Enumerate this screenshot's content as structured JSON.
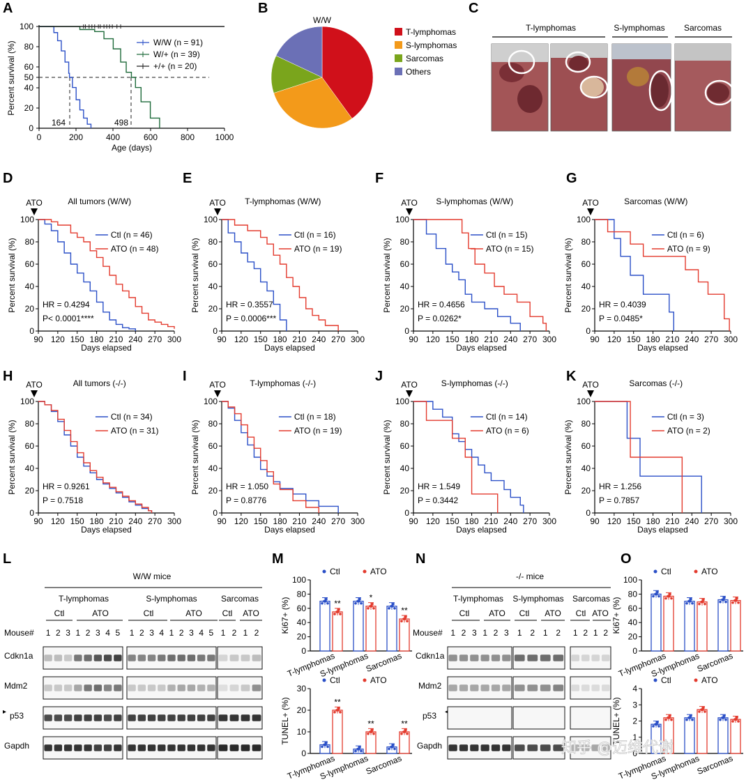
{
  "figure": {
    "panels": [
      "A",
      "B",
      "C",
      "D",
      "E",
      "F",
      "G",
      "H",
      "I",
      "J",
      "K",
      "L",
      "M",
      "N",
      "O"
    ]
  },
  "panelA": {
    "ylabel": "Percent survival (%)",
    "xlabel": "Age (days)",
    "yticks": [
      "100",
      "80",
      "60",
      "50",
      "40",
      "20",
      "0"
    ],
    "xticks": [
      "0",
      "200",
      "400",
      "600",
      "800",
      "1000"
    ],
    "legend": [
      "W/W (n = 91)",
      "W/+ (n = 39)",
      "+/+ (n = 20)"
    ],
    "median1": "164",
    "median2": "498"
  },
  "panelB": {
    "title": "W/W",
    "legend": [
      "T-lymphomas",
      "S-lymphomas",
      "Sarcomas",
      "Others"
    ],
    "colors": [
      "#d0101a",
      "#f39a1a",
      "#7aa51c",
      "#6b70b6"
    ]
  },
  "panelC": {
    "groups": [
      "T-lymphomas",
      "S-lymphomas",
      "Sarcomas"
    ]
  },
  "chart_data": [
    {
      "type": "line",
      "id": "A",
      "title": "",
      "xlabel": "Age (days)",
      "ylabel": "Percent survival (%)",
      "xlim": [
        0,
        1000
      ],
      "ylim": [
        0,
        100
      ],
      "series": [
        {
          "name": "W/W (n = 91)",
          "color": "#2a4fc7",
          "x": [
            0,
            60,
            80,
            100,
            120,
            140,
            160,
            164,
            180,
            200,
            220,
            240,
            260,
            280
          ],
          "y": [
            100,
            100,
            94,
            86,
            76,
            65,
            54,
            50,
            40,
            28,
            18,
            10,
            4,
            0
          ]
        },
        {
          "name": "W/+ (n = 39)",
          "color": "#1e6a3a",
          "x": [
            0,
            180,
            220,
            300,
            350,
            400,
            440,
            470,
            498,
            520,
            550,
            600,
            650
          ],
          "y": [
            100,
            100,
            97,
            95,
            88,
            78,
            65,
            55,
            50,
            40,
            26,
            10,
            0
          ]
        },
        {
          "name": "+/+ (n = 20)",
          "color": "#222222",
          "x": [
            0,
            1000
          ],
          "y": [
            100,
            100
          ]
        }
      ]
    },
    {
      "type": "pie",
      "id": "B",
      "title": "W/W",
      "categories": [
        "T-lymphomas",
        "S-lymphomas",
        "Sarcomas",
        "Others"
      ],
      "values": [
        40,
        30,
        12,
        18
      ]
    },
    {
      "type": "line",
      "id": "D",
      "title": "All tumors (W/W)",
      "xlabel": "Days elapsed",
      "ylabel": "Percent survival (%)",
      "xlim": [
        90,
        300
      ],
      "ylim": [
        0,
        100
      ],
      "series": [
        {
          "name": "Ctl (n = 46)",
          "color": "#2a4fc7",
          "x": [
            90,
            100,
            110,
            120,
            130,
            140,
            150,
            160,
            170,
            180,
            190,
            200,
            210,
            220,
            230,
            240
          ],
          "y": [
            100,
            96,
            90,
            80,
            70,
            60,
            52,
            44,
            36,
            26,
            17,
            10,
            6,
            3,
            2,
            0
          ]
        },
        {
          "name": "ATO (n = 48)",
          "color": "#e33a2d",
          "x": [
            90,
            110,
            120,
            140,
            150,
            160,
            170,
            180,
            190,
            200,
            210,
            220,
            230,
            240,
            250,
            260,
            270,
            280,
            290,
            300
          ],
          "y": [
            100,
            98,
            95,
            88,
            84,
            80,
            72,
            66,
            58,
            50,
            42,
            36,
            30,
            22,
            16,
            10,
            8,
            6,
            4,
            2
          ]
        }
      ],
      "annotations": [
        "HR = 0.4294",
        "P< 0.0001****"
      ]
    },
    {
      "type": "line",
      "id": "E",
      "title": "T-lymphomas (W/W)",
      "xlabel": "Days elapsed",
      "ylabel": "Percent survival (%)",
      "xlim": [
        90,
        300
      ],
      "ylim": [
        0,
        100
      ],
      "series": [
        {
          "name": "Ctl (n = 16)",
          "color": "#2a4fc7",
          "x": [
            90,
            100,
            110,
            120,
            130,
            140,
            150,
            160,
            170,
            180,
            190
          ],
          "y": [
            100,
            88,
            80,
            70,
            62,
            56,
            44,
            36,
            24,
            10,
            0
          ]
        },
        {
          "name": "ATO (n = 19)",
          "color": "#e33a2d",
          "x": [
            90,
            110,
            130,
            150,
            160,
            170,
            180,
            190,
            200,
            210,
            220,
            230,
            240,
            250,
            270
          ],
          "y": [
            100,
            95,
            90,
            84,
            78,
            68,
            60,
            48,
            40,
            30,
            20,
            14,
            10,
            5,
            0
          ]
        }
      ],
      "annotations": [
        "HR = 0.3557",
        "P = 0.0006***"
      ]
    },
    {
      "type": "line",
      "id": "F",
      "title": "S-lymphomas (W/W)",
      "xlabel": "Days elapsed",
      "ylabel": "Percent survival (%)",
      "xlim": [
        90,
        300
      ],
      "ylim": [
        0,
        100
      ],
      "series": [
        {
          "name": "Ctl (n = 15)",
          "color": "#2a4fc7",
          "x": [
            90,
            110,
            125,
            140,
            150,
            160,
            170,
            180,
            200,
            220,
            240,
            255
          ],
          "y": [
            100,
            87,
            74,
            60,
            53,
            46,
            33,
            26,
            20,
            13,
            7,
            0
          ]
        },
        {
          "name": "ATO (n = 15)",
          "color": "#e33a2d",
          "x": [
            90,
            150,
            165,
            175,
            185,
            200,
            215,
            230,
            250,
            270,
            290,
            295
          ],
          "y": [
            100,
            100,
            88,
            74,
            60,
            52,
            40,
            33,
            26,
            13,
            7,
            0
          ]
        }
      ],
      "annotations": [
        "HR = 0.4656",
        "P = 0.0262*"
      ]
    },
    {
      "type": "line",
      "id": "G",
      "title": "Sarcomas (W/W)",
      "xlabel": "Days elapsed",
      "ylabel": "Percent survival (%)",
      "xlim": [
        90,
        300
      ],
      "ylim": [
        0,
        100
      ],
      "series": [
        {
          "name": "Ctl (n = 6)",
          "color": "#2a4fc7",
          "x": [
            90,
            120,
            130,
            145,
            165,
            205,
            212
          ],
          "y": [
            100,
            83,
            67,
            50,
            33,
            17,
            0
          ]
        },
        {
          "name": "ATO (n = 9)",
          "color": "#e33a2d",
          "x": [
            90,
            110,
            145,
            165,
            200,
            230,
            250,
            265,
            290,
            298
          ],
          "y": [
            100,
            89,
            78,
            67,
            67,
            55,
            44,
            33,
            11,
            0
          ]
        }
      ],
      "annotations": [
        "HR = 0.4039",
        "P = 0.0485*"
      ]
    },
    {
      "type": "line",
      "id": "H",
      "title": "All tumors (-/-)",
      "xlabel": "Days elapsed",
      "ylabel": "Percent survival (%)",
      "xlim": [
        90,
        300
      ],
      "ylim": [
        0,
        100
      ],
      "series": [
        {
          "name": "Ctl (n = 34)",
          "color": "#2a4fc7",
          "x": [
            90,
            100,
            110,
            120,
            130,
            140,
            150,
            160,
            170,
            180,
            190,
            200,
            210,
            220,
            230,
            240,
            250,
            260,
            265
          ],
          "y": [
            100,
            97,
            91,
            82,
            70,
            60,
            50,
            42,
            36,
            30,
            26,
            22,
            18,
            14,
            10,
            7,
            4,
            2,
            0
          ]
        },
        {
          "name": "ATO (n = 31)",
          "color": "#e33a2d",
          "x": [
            90,
            100,
            110,
            120,
            130,
            140,
            150,
            160,
            170,
            180,
            190,
            200,
            210,
            220,
            230,
            240,
            250,
            260,
            265
          ],
          "y": [
            100,
            97,
            92,
            84,
            74,
            64,
            54,
            45,
            38,
            32,
            27,
            23,
            19,
            15,
            11,
            8,
            5,
            2,
            0
          ]
        }
      ],
      "annotations": [
        "HR = 0.9261",
        "P = 0.7518"
      ]
    },
    {
      "type": "line",
      "id": "I",
      "title": "T-lymphomas (-/-)",
      "xlabel": "Days elapsed",
      "ylabel": "Percent survival (%)",
      "xlim": [
        90,
        300
      ],
      "ylim": [
        0,
        100
      ],
      "series": [
        {
          "name": "Ctl (n = 18)",
          "color": "#2a4fc7",
          "x": [
            90,
            100,
            110,
            120,
            130,
            140,
            150,
            160,
            170,
            180,
            200,
            220,
            240,
            270
          ],
          "y": [
            100,
            94,
            83,
            72,
            61,
            50,
            39,
            33,
            28,
            22,
            17,
            11,
            6,
            0
          ]
        },
        {
          "name": "ATO (n = 19)",
          "color": "#e33a2d",
          "x": [
            90,
            100,
            110,
            120,
            130,
            140,
            150,
            160,
            170,
            180,
            200,
            220,
            240
          ],
          "y": [
            100,
            95,
            89,
            79,
            68,
            58,
            47,
            37,
            26,
            21,
            11,
            5,
            0
          ]
        }
      ],
      "annotations": [
        "HR = 1.050",
        "P = 0.8776"
      ]
    },
    {
      "type": "line",
      "id": "J",
      "title": "S-lymphomas (-/-)",
      "xlabel": "Days elapsed",
      "ylabel": "Percent survival (%)",
      "xlim": [
        90,
        300
      ],
      "ylim": [
        0,
        100
      ],
      "series": [
        {
          "name": "Ctl (n = 14)",
          "color": "#2a4fc7",
          "x": [
            90,
            120,
            135,
            150,
            160,
            170,
            180,
            190,
            200,
            210,
            230,
            240,
            255,
            260
          ],
          "y": [
            100,
            93,
            86,
            71,
            64,
            57,
            50,
            43,
            36,
            29,
            21,
            14,
            7,
            0
          ]
        },
        {
          "name": "ATO (n = 6)",
          "color": "#e33a2d",
          "x": [
            90,
            110,
            130,
            150,
            170,
            180,
            220
          ],
          "y": [
            100,
            83,
            83,
            67,
            50,
            17,
            0
          ]
        }
      ],
      "annotations": [
        "HR = 1.549",
        "P = 0.3442"
      ]
    },
    {
      "type": "line",
      "id": "K",
      "title": "Sarcomas  (-/-)",
      "xlabel": "Days elapsed",
      "ylabel": "Percent survival (%)",
      "xlim": [
        90,
        300
      ],
      "ylim": [
        0,
        100
      ],
      "series": [
        {
          "name": "Ctl (n = 3)",
          "color": "#2a4fc7",
          "x": [
            90,
            140,
            160,
            255
          ],
          "y": [
            100,
            67,
            33,
            0
          ]
        },
        {
          "name": "ATO (n = 2)",
          "color": "#e33a2d",
          "x": [
            90,
            145,
            225
          ],
          "y": [
            100,
            50,
            0
          ]
        }
      ],
      "annotations": [
        "HR = 1.256",
        "P = 0.7857"
      ]
    },
    {
      "type": "bar",
      "id": "M-top",
      "ylabel": "Ki67+ (%)",
      "ylim": [
        0,
        100
      ],
      "categories": [
        "T-lymphomas",
        "S-lymphomas",
        "Sarcomas"
      ],
      "series": [
        {
          "name": "Ctl",
          "values": [
            70,
            70,
            63
          ]
        },
        {
          "name": "ATO",
          "values": [
            55,
            63,
            45
          ]
        }
      ],
      "significance": [
        "**",
        "*",
        "**"
      ]
    },
    {
      "type": "bar",
      "id": "M-bottom",
      "ylabel": "TUNEL+ (%)",
      "ylim": [
        0,
        30
      ],
      "categories": [
        "T-lymphomas",
        "S-lymphomas",
        "Sarcomas"
      ],
      "series": [
        {
          "name": "Ctl",
          "values": [
            4,
            2,
            3
          ]
        },
        {
          "name": "ATO",
          "values": [
            20,
            10,
            10
          ]
        }
      ],
      "significance": [
        "**",
        "**",
        "**"
      ]
    },
    {
      "type": "bar",
      "id": "O-top",
      "ylabel": "Ki67+ (%)",
      "ylim": [
        0,
        100
      ],
      "categories": [
        "T-lymphomas",
        "S-lymphomas",
        "Sarcomas"
      ],
      "series": [
        {
          "name": "Ctl",
          "values": [
            80,
            70,
            72
          ]
        },
        {
          "name": "ATO",
          "values": [
            77,
            69,
            71
          ]
        }
      ]
    },
    {
      "type": "bar",
      "id": "O-bottom",
      "ylabel": "TUNEL+ (%)",
      "ylim": [
        0,
        4
      ],
      "categories": [
        "T-lymphomas",
        "S-lymphomas",
        "Sarcomas"
      ],
      "series": [
        {
          "name": "Ctl",
          "values": [
            1.8,
            2.2,
            2.2
          ]
        },
        {
          "name": "ATO",
          "values": [
            2.2,
            2.7,
            2.1
          ]
        }
      ]
    }
  ],
  "km_common": {
    "ato_marker": "ATO",
    "ylabel": "Percent survival (%)",
    "xlabel": "Days elapsed",
    "xticks": [
      "90",
      "120",
      "150",
      "180",
      "210",
      "240",
      "270",
      "300"
    ],
    "yticks": [
      "100",
      "80",
      "60",
      "40",
      "20",
      "0"
    ]
  },
  "panelL": {
    "title": "W/W mice",
    "groups": [
      "T-lymphomas",
      "S-lymphomas",
      "Sarcomas"
    ],
    "treat": [
      "Ctl",
      "ATO",
      "Ctl",
      "ATO",
      "Ctl",
      "ATO"
    ],
    "mouse_label": "Mouse#",
    "mouse_nums": [
      "1",
      "2",
      "3",
      "1",
      "2",
      "3",
      "4",
      "5",
      "1",
      "2",
      "3",
      "4",
      "1",
      "2",
      "3",
      "4",
      "5",
      "1",
      "2",
      "1",
      "2"
    ],
    "rows": [
      "Cdkn1a",
      "Mdm2",
      "p53",
      "Gapdh"
    ]
  },
  "panelN": {
    "title": "-/- mice",
    "groups": [
      "T-lymphomas",
      "S-lymphomas",
      "Sarcomas"
    ],
    "treat": [
      "Ctl",
      "ATO",
      "Ctl",
      "ATO",
      "Ctl",
      "ATO"
    ],
    "mouse_label": "Mouse#",
    "mouse_nums": [
      "1",
      "2",
      "3",
      "1",
      "2",
      "3",
      "1",
      "2",
      "1",
      "2",
      "1",
      "2",
      "1",
      "2"
    ],
    "rows": [
      "Cdkn1a",
      "Mdm2",
      "p53",
      "Gapdh"
    ]
  },
  "bars_common": {
    "legend": [
      "Ctl",
      "ATO"
    ],
    "ki67_label": "Ki67+ (%)",
    "tunel_label": "TUNEL+ (%)",
    "categories": [
      "T-lymphomas",
      "S-lymphomas",
      "Sarcomas"
    ],
    "ki_ticks": [
      "100",
      "80",
      "60",
      "40",
      "20",
      "0"
    ],
    "tunel_ticks_M": [
      "30",
      "20",
      "10",
      "0"
    ],
    "tunel_ticks_O": [
      "4",
      "3",
      "2",
      "1",
      "0"
    ]
  },
  "watermark": "知乎 @迈维代谢",
  "colors": {
    "ctl": "#2a4fc7",
    "ato": "#e33a2d",
    "ww": "#2a4fc7",
    "wplus": "#1e6a3a",
    "plus": "#222222"
  }
}
